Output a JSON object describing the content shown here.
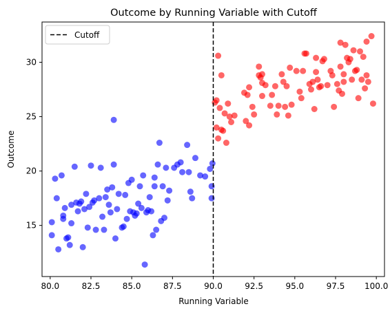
{
  "chart_data": {
    "type": "scatter",
    "title": "Outcome by Running Variable with Cutoff",
    "xlabel": "Running Variable",
    "ylabel": "Outcome",
    "xlim": [
      79.5,
      100.5
    ],
    "ylim": [
      10.3,
      33.7
    ],
    "x_ticks": [
      80.0,
      82.5,
      85.0,
      87.5,
      90.0,
      92.5,
      95.0,
      97.5,
      100.0
    ],
    "x_tick_labels": [
      "80.0",
      "82.5",
      "85.0",
      "87.5",
      "90.0",
      "92.5",
      "95.0",
      "97.5",
      "100.0"
    ],
    "y_ticks": [
      15,
      20,
      25,
      30
    ],
    "y_tick_labels": [
      "15",
      "20",
      "25",
      "30"
    ],
    "grid": false,
    "cutoff": {
      "x": 90.0,
      "label": "Cutoff",
      "color": "#000000",
      "style": "dashed"
    },
    "legend": {
      "position": "top-left",
      "entries": [
        "Cutoff"
      ]
    },
    "series": [
      {
        "color": "#0000ff",
        "points": [
          [
            80.1,
            14.1
          ],
          [
            80.1,
            15.3
          ],
          [
            80.3,
            19.3
          ],
          [
            80.4,
            17.5
          ],
          [
            80.5,
            12.8
          ],
          [
            80.7,
            19.6
          ],
          [
            80.8,
            15.9
          ],
          [
            80.8,
            15.6
          ],
          [
            80.9,
            16.6
          ],
          [
            81.0,
            13.8
          ],
          [
            81.1,
            13.9
          ],
          [
            81.2,
            13.2
          ],
          [
            81.3,
            15.2
          ],
          [
            81.3,
            16.9
          ],
          [
            81.5,
            20.4
          ],
          [
            81.6,
            17.1
          ],
          [
            81.7,
            16.3
          ],
          [
            81.8,
            17.0
          ],
          [
            81.9,
            17.2
          ],
          [
            82.0,
            13.0
          ],
          [
            82.1,
            16.5
          ],
          [
            82.2,
            17.9
          ],
          [
            82.3,
            14.8
          ],
          [
            82.4,
            16.7
          ],
          [
            82.5,
            20.5
          ],
          [
            82.6,
            17.1
          ],
          [
            82.7,
            17.3
          ],
          [
            82.8,
            14.6
          ],
          [
            83.0,
            17.5
          ],
          [
            83.1,
            20.3
          ],
          [
            83.2,
            15.8
          ],
          [
            83.3,
            14.6
          ],
          [
            83.4,
            17.6
          ],
          [
            83.5,
            18.3
          ],
          [
            83.6,
            16.9
          ],
          [
            83.7,
            16.2
          ],
          [
            83.8,
            18.5
          ],
          [
            83.9,
            20.6
          ],
          [
            83.9,
            24.7
          ],
          [
            84.0,
            13.8
          ],
          [
            84.1,
            16.5
          ],
          [
            84.2,
            17.9
          ],
          [
            84.4,
            14.8
          ],
          [
            84.5,
            14.9
          ],
          [
            84.6,
            17.8
          ],
          [
            84.7,
            15.6
          ],
          [
            84.8,
            18.9
          ],
          [
            84.9,
            16.3
          ],
          [
            85.0,
            19.2
          ],
          [
            85.1,
            16.2
          ],
          [
            85.2,
            15.9
          ],
          [
            85.3,
            16.1
          ],
          [
            85.4,
            17.0
          ],
          [
            85.5,
            18.6
          ],
          [
            85.6,
            16.6
          ],
          [
            85.7,
            19.6
          ],
          [
            85.8,
            11.4
          ],
          [
            85.9,
            16.2
          ],
          [
            86.0,
            16.4
          ],
          [
            86.1,
            17.6
          ],
          [
            86.2,
            16.3
          ],
          [
            86.3,
            14.1
          ],
          [
            86.4,
            19.4
          ],
          [
            86.4,
            18.6
          ],
          [
            86.5,
            14.6
          ],
          [
            86.6,
            20.6
          ],
          [
            86.7,
            22.6
          ],
          [
            86.8,
            15.4
          ],
          [
            86.9,
            18.6
          ],
          [
            87.0,
            15.7
          ],
          [
            87.1,
            20.3
          ],
          [
            87.2,
            17.3
          ],
          [
            87.3,
            18.2
          ],
          [
            87.6,
            20.3
          ],
          [
            87.8,
            20.6
          ],
          [
            88.0,
            20.8
          ],
          [
            88.1,
            19.9
          ],
          [
            88.4,
            22.4
          ],
          [
            88.5,
            19.9
          ],
          [
            88.6,
            18.1
          ],
          [
            88.7,
            17.5
          ],
          [
            88.9,
            21.2
          ],
          [
            89.2,
            19.6
          ],
          [
            89.5,
            19.5
          ],
          [
            89.8,
            20.2
          ],
          [
            89.9,
            17.5
          ],
          [
            89.9,
            18.6
          ],
          [
            89.95,
            20.7
          ]
        ]
      },
      {
        "color": "#ff0000",
        "points": [
          [
            90.1,
            26.3
          ],
          [
            90.2,
            24.0
          ],
          [
            90.2,
            26.5
          ],
          [
            90.3,
            30.6
          ],
          [
            90.3,
            23.0
          ],
          [
            90.4,
            25.8
          ],
          [
            90.5,
            28.8
          ],
          [
            90.5,
            23.8
          ],
          [
            90.6,
            23.7
          ],
          [
            90.7,
            25.3
          ],
          [
            90.8,
            22.6
          ],
          [
            90.9,
            26.2
          ],
          [
            91.0,
            25.0
          ],
          [
            91.1,
            24.5
          ],
          [
            91.3,
            25.1
          ],
          [
            91.9,
            27.2
          ],
          [
            92.0,
            24.6
          ],
          [
            92.1,
            27.0
          ],
          [
            92.2,
            24.2
          ],
          [
            92.2,
            27.7
          ],
          [
            92.4,
            25.9
          ],
          [
            92.5,
            25.2
          ],
          [
            92.8,
            28.8
          ],
          [
            92.8,
            29.6
          ],
          [
            92.9,
            28.6
          ],
          [
            93.0,
            28.1
          ],
          [
            93.0,
            28.9
          ],
          [
            93.0,
            26.9
          ],
          [
            93.2,
            27.9
          ],
          [
            93.5,
            26.0
          ],
          [
            93.6,
            27.0
          ],
          [
            93.8,
            27.8
          ],
          [
            93.9,
            25.2
          ],
          [
            94.0,
            26.0
          ],
          [
            94.2,
            28.9
          ],
          [
            94.3,
            28.2
          ],
          [
            94.4,
            25.9
          ],
          [
            94.5,
            27.8
          ],
          [
            94.6,
            25.1
          ],
          [
            94.7,
            29.5
          ],
          [
            94.8,
            26.1
          ],
          [
            95.1,
            29.2
          ],
          [
            95.3,
            27.3
          ],
          [
            95.4,
            26.7
          ],
          [
            95.5,
            29.2
          ],
          [
            95.6,
            30.8
          ],
          [
            95.7,
            30.8
          ],
          [
            95.9,
            28.0
          ],
          [
            96.0,
            27.5
          ],
          [
            96.1,
            28.2
          ],
          [
            96.2,
            25.7
          ],
          [
            96.3,
            29.1
          ],
          [
            96.3,
            30.4
          ],
          [
            96.4,
            28.4
          ],
          [
            96.5,
            27.7
          ],
          [
            96.6,
            27.8
          ],
          [
            96.7,
            30.1
          ],
          [
            96.8,
            30.3
          ],
          [
            97.0,
            27.9
          ],
          [
            97.2,
            29.2
          ],
          [
            97.3,
            28.8
          ],
          [
            97.4,
            25.9
          ],
          [
            97.6,
            28.0
          ],
          [
            97.7,
            27.4
          ],
          [
            97.8,
            29.6
          ],
          [
            97.8,
            31.8
          ],
          [
            97.9,
            27.1
          ],
          [
            98.0,
            28.9
          ],
          [
            98.0,
            28.2
          ],
          [
            98.1,
            31.6
          ],
          [
            98.2,
            30.4
          ],
          [
            98.3,
            30.0
          ],
          [
            98.4,
            30.3
          ],
          [
            98.5,
            28.4
          ],
          [
            98.6,
            31.1
          ],
          [
            98.7,
            29.2
          ],
          [
            98.8,
            29.3
          ],
          [
            98.9,
            26.7
          ],
          [
            99.0,
            31.0
          ],
          [
            99.1,
            28.4
          ],
          [
            99.2,
            30.5
          ],
          [
            99.3,
            27.6
          ],
          [
            99.4,
            31.9
          ],
          [
            99.4,
            28.8
          ],
          [
            99.5,
            28.2
          ],
          [
            99.7,
            32.4
          ],
          [
            99.8,
            26.2
          ]
        ]
      }
    ]
  }
}
